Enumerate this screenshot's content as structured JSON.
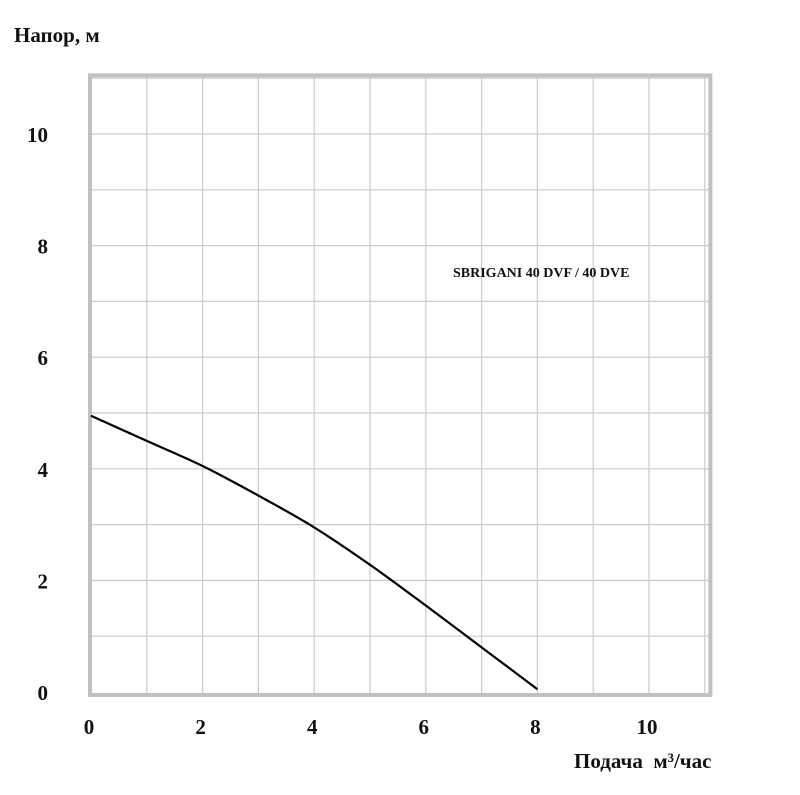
{
  "chart_data": {
    "type": "line",
    "title": "",
    "xlabel": "Подача  м³/час",
    "ylabel": "Напор, м",
    "xlim": [
      0,
      11.1
    ],
    "ylim": [
      0,
      11.05
    ],
    "xticks": [
      0,
      2,
      4,
      6,
      8,
      10
    ],
    "yticks": [
      0,
      2,
      4,
      6,
      8,
      10
    ],
    "xtick_labels": [
      "0",
      "2",
      "4",
      "6",
      "8",
      "10"
    ],
    "ytick_labels": [
      "0",
      "2",
      "4",
      "6",
      "8",
      "10"
    ],
    "grid": true,
    "grid_step": 1,
    "annotation": "SBRIGANI 40 DVF / 40 DVE",
    "series": [
      {
        "name": "SBRIGANI 40 DVF / 40 DVE",
        "x": [
          0,
          1,
          2,
          3,
          4,
          5,
          6,
          7,
          8
        ],
        "y": [
          4.95,
          4.5,
          4.05,
          3.52,
          2.95,
          2.28,
          1.55,
          0.8,
          0.05
        ]
      }
    ],
    "colors": {
      "line": "#000000",
      "grid": "#cccccc",
      "frame": "#c0c0c0"
    }
  }
}
